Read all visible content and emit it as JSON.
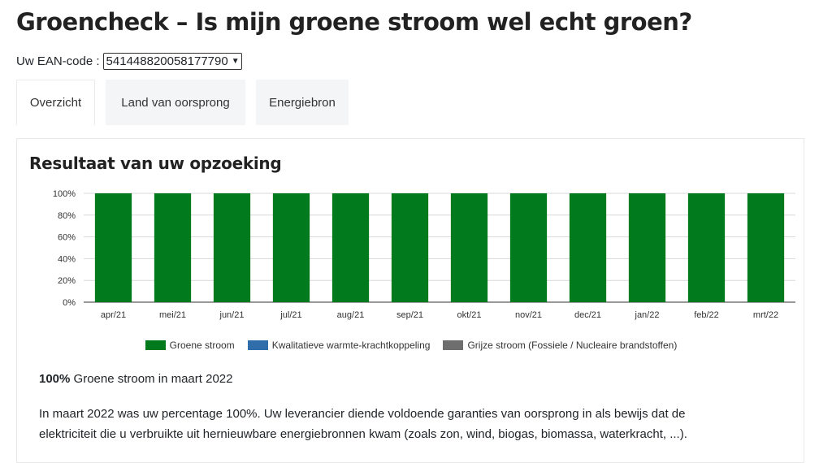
{
  "header": {
    "title": "Groencheck – Is mijn groene stroom wel echt groen?"
  },
  "ean": {
    "label": "Uw EAN-code :",
    "selected": "541448820058177790"
  },
  "tabs": [
    {
      "label": "Overzicht",
      "active": true
    },
    {
      "label": "Land van oorsprong",
      "active": false
    },
    {
      "label": "Energiebron",
      "active": false
    }
  ],
  "result": {
    "title": "Resultaat van uw opzoeking",
    "summary_strong": "100%",
    "summary_rest": " Groene stroom in maart 2022",
    "description_line1": "In maart 2022 was uw percentage 100%. Uw leverancier diende voldoende garanties van oorsprong in als bewijs dat de",
    "description_line2": "elektriciteit die u verbruikte uit hernieuwbare energiebronnen kwam (zoals zon, wind, biogas, biomassa, waterkracht, ...)."
  },
  "chart_data": {
    "type": "bar",
    "stacked": true,
    "categories": [
      "apr/21",
      "mei/21",
      "jun/21",
      "jul/21",
      "aug/21",
      "sep/21",
      "okt/21",
      "nov/21",
      "dec/21",
      "jan/22",
      "feb/22",
      "mrt/22"
    ],
    "series": [
      {
        "name": "Groene stroom",
        "color": "#007a1d",
        "values": [
          100,
          100,
          100,
          100,
          100,
          100,
          100,
          100,
          100,
          100,
          100,
          100
        ]
      },
      {
        "name": "Kwalitatieve warmte-krachtkoppeling",
        "color": "#2f6eaa",
        "values": [
          0,
          0,
          0,
          0,
          0,
          0,
          0,
          0,
          0,
          0,
          0,
          0
        ]
      },
      {
        "name": "Grijze stroom (Fossiele / Nucleaire brandstoffen)",
        "color": "#6e6e6e",
        "values": [
          0,
          0,
          0,
          0,
          0,
          0,
          0,
          0,
          0,
          0,
          0,
          0
        ]
      }
    ],
    "yticks": [
      "0%",
      "20%",
      "40%",
      "60%",
      "80%",
      "100%"
    ],
    "ylim": [
      0,
      100
    ],
    "grid": true,
    "legend_position": "bottom"
  }
}
